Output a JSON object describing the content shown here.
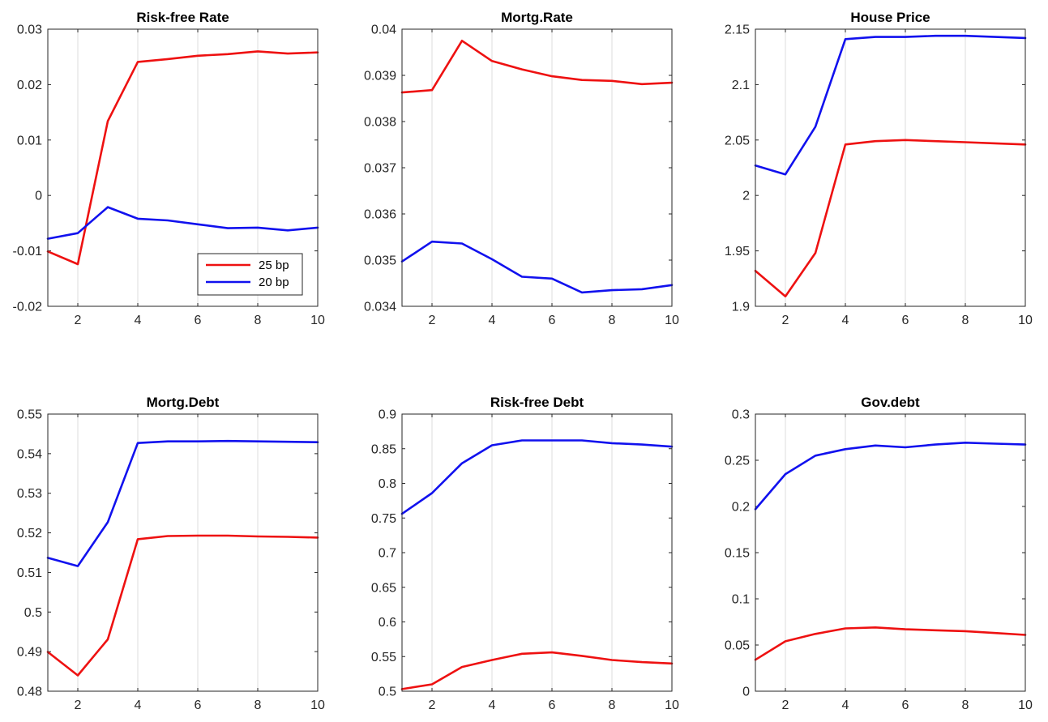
{
  "colors": {
    "red": "#ee1111",
    "blue": "#1111ee",
    "axis": "#262626",
    "grid": "#dcdcdc"
  },
  "chart_data": [
    {
      "type": "line",
      "title": "Risk-free Rate",
      "x": [
        1,
        2,
        3,
        4,
        5,
        6,
        7,
        8,
        9,
        10
      ],
      "xlim": [
        1,
        10
      ],
      "xticks": [
        "2",
        "4",
        "6",
        "8",
        "10"
      ],
      "ylim": [
        -0.02,
        0.03
      ],
      "yticks": [
        "-0.02",
        "-0.01",
        "0",
        "0.01",
        "0.02",
        "0.03"
      ],
      "grid": "vertical",
      "legend": {
        "location": "bottom-right",
        "entries": [
          "25 bp",
          "20 bp"
        ]
      },
      "series": [
        {
          "name": "25 bp",
          "color": "red",
          "values": [
            -0.0101,
            -0.0124,
            0.0134,
            0.0241,
            0.0246,
            0.0252,
            0.0255,
            0.026,
            0.0256,
            0.0258
          ]
        },
        {
          "name": "20 bp",
          "color": "blue",
          "values": [
            -0.0078,
            -0.0068,
            -0.0021,
            -0.0042,
            -0.0045,
            -0.0052,
            -0.0059,
            -0.0058,
            -0.0063,
            -0.0058
          ]
        }
      ]
    },
    {
      "type": "line",
      "title": "Mortg.Rate",
      "x": [
        1,
        2,
        3,
        4,
        5,
        6,
        7,
        8,
        9,
        10
      ],
      "xlim": [
        1,
        10
      ],
      "xticks": [
        "2",
        "4",
        "6",
        "8",
        "10"
      ],
      "ylim": [
        0.034,
        0.04
      ],
      "yticks": [
        "0.034",
        "0.035",
        "0.036",
        "0.037",
        "0.038",
        "0.039",
        "0.04"
      ],
      "grid": "vertical",
      "series": [
        {
          "color": "red",
          "values": [
            0.03863,
            0.03868,
            0.03975,
            0.03931,
            0.03913,
            0.03898,
            0.0389,
            0.03888,
            0.03881,
            0.03884
          ]
        },
        {
          "color": "blue",
          "values": [
            0.03497,
            0.0354,
            0.03536,
            0.03502,
            0.03464,
            0.0346,
            0.0343,
            0.03435,
            0.03437,
            0.03446
          ]
        }
      ]
    },
    {
      "type": "line",
      "title": "House Price",
      "x": [
        1,
        2,
        3,
        4,
        5,
        6,
        7,
        8,
        9,
        10
      ],
      "xlim": [
        1,
        10
      ],
      "xticks": [
        "2",
        "4",
        "6",
        "8",
        "10"
      ],
      "ylim": [
        1.9,
        2.15
      ],
      "yticks": [
        "1.9",
        "1.95",
        "2",
        "2.05",
        "2.1",
        "2.15"
      ],
      "grid": "vertical",
      "series": [
        {
          "color": "red",
          "values": [
            1.932,
            1.909,
            1.948,
            2.046,
            2.049,
            2.05,
            2.049,
            2.048,
            2.047,
            2.046
          ]
        },
        {
          "color": "blue",
          "values": [
            2.027,
            2.019,
            2.062,
            2.141,
            2.143,
            2.143,
            2.144,
            2.144,
            2.143,
            2.142
          ]
        }
      ]
    },
    {
      "type": "line",
      "title": "Mortg.Debt",
      "x": [
        1,
        2,
        3,
        4,
        5,
        6,
        7,
        8,
        9,
        10
      ],
      "xlim": [
        1,
        10
      ],
      "xticks": [
        "2",
        "4",
        "6",
        "8",
        "10"
      ],
      "ylim": [
        0.48,
        0.55
      ],
      "yticks": [
        "0.48",
        "0.49",
        "0.5",
        "0.51",
        "0.52",
        "0.53",
        "0.54",
        "0.55"
      ],
      "grid": "vertical",
      "series": [
        {
          "color": "red",
          "values": [
            0.4899,
            0.484,
            0.4931,
            0.5184,
            0.5192,
            0.5193,
            0.5193,
            0.5191,
            0.519,
            0.5188
          ]
        },
        {
          "color": "blue",
          "values": [
            0.5137,
            0.5116,
            0.5227,
            0.5427,
            0.5431,
            0.5431,
            0.5432,
            0.5431,
            0.543,
            0.5429
          ]
        }
      ]
    },
    {
      "type": "line",
      "title": "Risk-free Debt",
      "x": [
        1,
        2,
        3,
        4,
        5,
        6,
        7,
        8,
        9,
        10
      ],
      "xlim": [
        1,
        10
      ],
      "xticks": [
        "2",
        "4",
        "6",
        "8",
        "10"
      ],
      "ylim": [
        0.5,
        0.9
      ],
      "yticks": [
        "0.5",
        "0.55",
        "0.6",
        "0.65",
        "0.7",
        "0.75",
        "0.8",
        "0.85",
        "0.9"
      ],
      "grid": "vertical",
      "series": [
        {
          "color": "red",
          "values": [
            0.503,
            0.51,
            0.535,
            0.545,
            0.554,
            0.556,
            0.551,
            0.545,
            0.542,
            0.54
          ]
        },
        {
          "color": "blue",
          "values": [
            0.756,
            0.786,
            0.829,
            0.855,
            0.862,
            0.862,
            0.862,
            0.858,
            0.856,
            0.853
          ]
        }
      ]
    },
    {
      "type": "line",
      "title": "Gov.debt",
      "x": [
        1,
        2,
        3,
        4,
        5,
        6,
        7,
        8,
        9,
        10
      ],
      "xlim": [
        1,
        10
      ],
      "xticks": [
        "2",
        "4",
        "6",
        "8",
        "10"
      ],
      "ylim": [
        0,
        0.3
      ],
      "yticks": [
        "0",
        "0.05",
        "0.1",
        "0.15",
        "0.2",
        "0.25",
        "0.3"
      ],
      "grid": "vertical",
      "series": [
        {
          "color": "red",
          "values": [
            0.034,
            0.054,
            0.062,
            0.068,
            0.069,
            0.067,
            0.066,
            0.065,
            0.063,
            0.061
          ]
        },
        {
          "color": "blue",
          "values": [
            0.197,
            0.235,
            0.255,
            0.262,
            0.266,
            0.264,
            0.267,
            0.269,
            0.268,
            0.267
          ]
        }
      ]
    }
  ]
}
